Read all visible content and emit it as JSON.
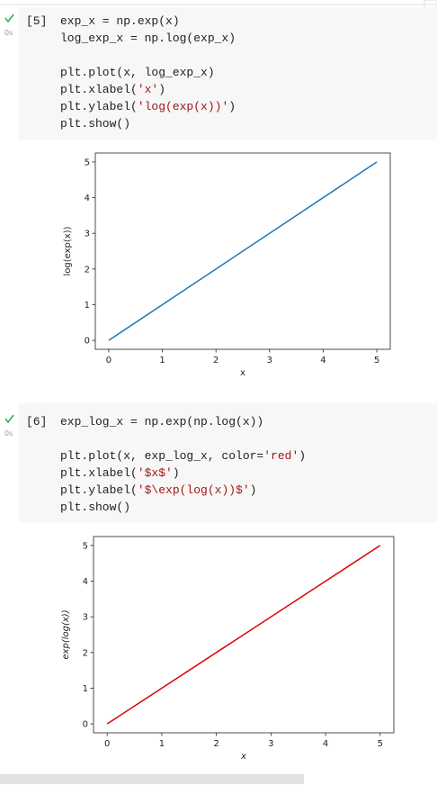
{
  "cells": [
    {
      "execution_count": "[5]",
      "duration": "0s",
      "code_blocks": [
        [
          "exp_x = np.exp(x)",
          "log_exp_x = np.log(exp_x)"
        ],
        [
          "plt.plot(x, log_exp_x)",
          "plt.xlabel('x')",
          "plt.ylabel('log(exp(x))')",
          "plt.show()"
        ]
      ],
      "chart": {
        "type": "line",
        "x_label": "x",
        "y_label": "log(exp(x))",
        "x": [
          0,
          5
        ],
        "values": [
          0,
          5
        ],
        "color": "#1f77b4",
        "xlim": [
          -0.25,
          5.25
        ],
        "ylim": [
          -0.25,
          5.25
        ],
        "xticks": [
          0,
          1,
          2,
          3,
          4,
          5
        ],
        "yticks": [
          0,
          1,
          2,
          3,
          4,
          5
        ],
        "italic_labels": false
      }
    },
    {
      "execution_count": "[6]",
      "duration": "0s",
      "code_blocks": [
        [
          "exp_log_x = np.exp(np.log(x))"
        ],
        [
          "plt.plot(x, exp_log_x, color='red')",
          "plt.xlabel('$x$')",
          "plt.ylabel('$\\exp(log(x))$')",
          "plt.show()"
        ]
      ],
      "chart": {
        "type": "line",
        "x_label": "x",
        "y_label": "exp(log(x))",
        "x": [
          0,
          5
        ],
        "values": [
          0,
          5
        ],
        "color": "#e00000",
        "xlim": [
          -0.25,
          5.25
        ],
        "ylim": [
          -0.25,
          5.25
        ],
        "xticks": [
          0,
          1,
          2,
          3,
          4,
          5
        ],
        "yticks": [
          0,
          1,
          2,
          3,
          4,
          5
        ],
        "italic_labels": true
      }
    }
  ]
}
